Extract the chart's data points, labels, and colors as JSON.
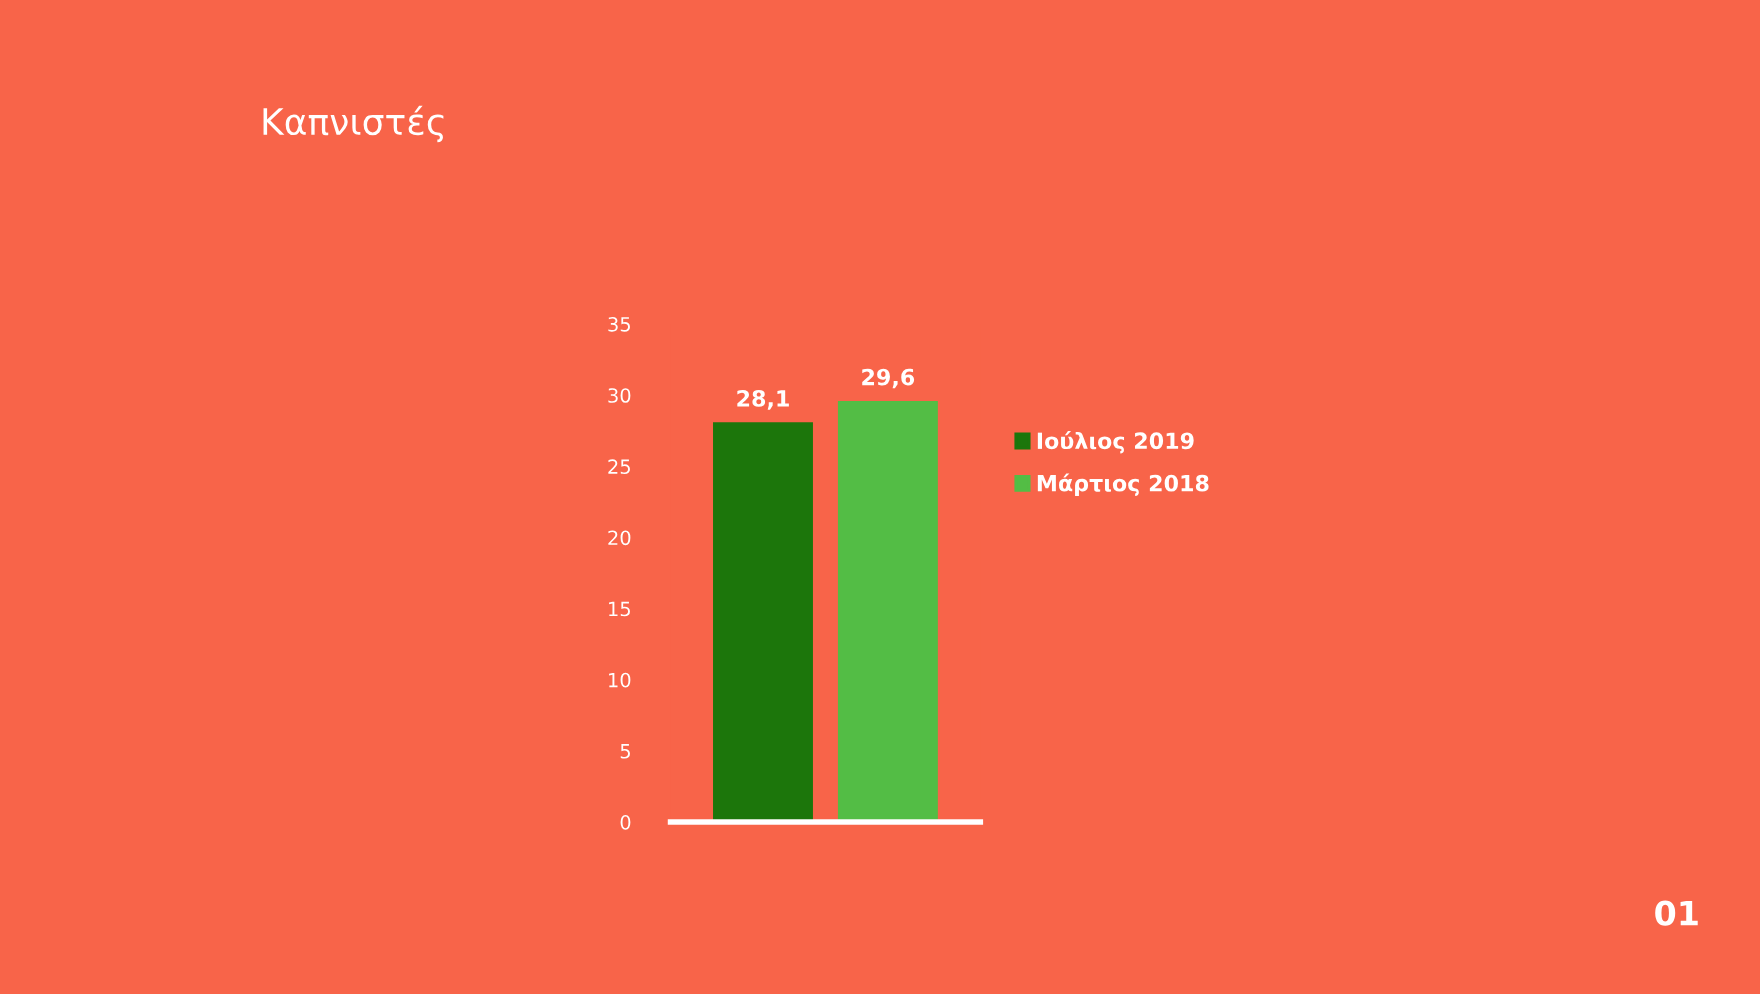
{
  "chart_data": {
    "type": "bar",
    "title": "Καπνιστές",
    "categories": [
      null
    ],
    "series": [
      {
        "name": "Ιούλιος 2019",
        "color": "#1c760b",
        "values": [
          28.1
        ],
        "value_labels": [
          "28,1"
        ]
      },
      {
        "name": "Μάρτιος 2018",
        "color": "#53bd45",
        "values": [
          29.6
        ],
        "value_labels": [
          "29,6"
        ]
      }
    ],
    "ylim": [
      0,
      35
    ],
    "yticks": [
      0,
      5,
      10,
      15,
      20,
      25,
      30,
      35
    ],
    "grid": false,
    "legend": "right",
    "annotations": [
      "01"
    ]
  }
}
